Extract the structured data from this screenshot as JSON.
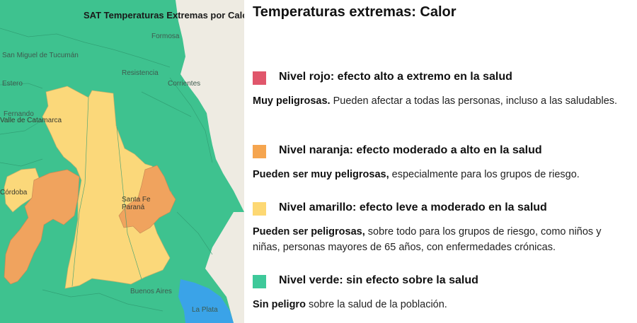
{
  "map": {
    "title": "SAT Temperaturas Extremas por Calor",
    "places": {
      "formosa": "Formosa",
      "tucuman": "San Miguel de Tucumán",
      "resistencia": "Resistencia",
      "estero": "Estero",
      "corrientes": "Corrientes",
      "fernando_1": "Fernando",
      "fernando_2": "Valle de Catamarca",
      "cordoba": "Córdoba",
      "santa_fe": "Santa Fe",
      "parana": "Paraná",
      "buenos_aires": "Buenos Aires",
      "la_plata": "La Plata"
    },
    "colors": {
      "green": "#3ec28f",
      "orange": "#f0a35e",
      "yellow": "#fbd87a",
      "gray": "#eeebe2",
      "water": "#3aa3e8"
    }
  },
  "legend": {
    "title": "Temperaturas extremas: Calor",
    "levels": [
      {
        "color": "#e0566b",
        "title": "Nivel rojo: efecto alto a extremo en la salud",
        "desc_bold": "Muy peligrosas.",
        "desc_rest": " Pueden afectar a todas las personas, incluso a las saludables."
      },
      {
        "color": "#f5a54f",
        "title": "Nivel naranja: efecto moderado a alto en la salud",
        "desc_bold": "Pueden ser muy peligrosas,",
        "desc_rest": " especialmente para los grupos de riesgo."
      },
      {
        "color": "#fdd873",
        "title": "Nivel amarillo: efecto leve a moderado en la salud",
        "desc_bold": "Pueden ser peligrosas,",
        "desc_rest": " sobre todo para los grupos de riesgo, como niños y niñas, personas mayores de 65 años, con enfermedades crónicas."
      },
      {
        "color": "#3ec99a",
        "title": "Nivel verde: sin efecto sobre la salud",
        "desc_bold": "Sin peligro",
        "desc_rest": " sobre la salud de la población."
      }
    ]
  }
}
